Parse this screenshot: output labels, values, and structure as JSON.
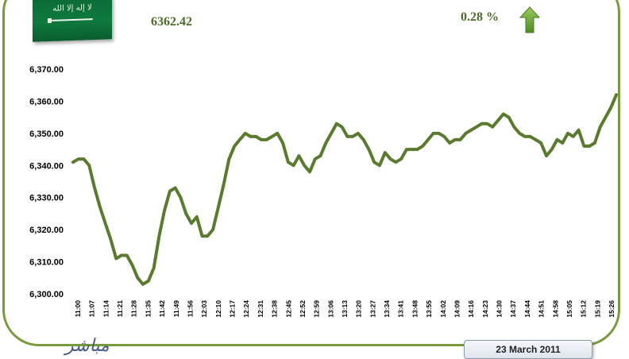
{
  "header": {
    "index_value": "6362.42",
    "change_pct": "0.28 %",
    "arrow_icon": "up-arrow-icon",
    "flag_icon": "saudi-flag-icon",
    "flag_script": "لا إله إلا الله"
  },
  "footer": {
    "logo_text": "مباشر",
    "date_label": "23 March 2011"
  },
  "colors": {
    "frame": "#7a9a3e",
    "line": "#5a7a2e",
    "value_text": "#4d6b28",
    "arrow": "#6aa43a"
  },
  "chart_data": {
    "type": "line",
    "title": "",
    "xlabel": "",
    "ylabel": "",
    "ylim": [
      6300,
      6370
    ],
    "yticks": [
      "6,300.00",
      "6,310.00",
      "6,320.00",
      "6,330.00",
      "6,340.00",
      "6,350.00",
      "6,360.00",
      "6,370.00"
    ],
    "ytick_values": [
      6300,
      6310,
      6320,
      6330,
      6340,
      6350,
      6360,
      6370
    ],
    "xticks": [
      "11:00",
      "11:07",
      "11:14",
      "11:21",
      "11:28",
      "11:35",
      "11:42",
      "11:49",
      "11:56",
      "12:03",
      "12:10",
      "12:17",
      "12:24",
      "12:31",
      "12:38",
      "12:45",
      "12:52",
      "12:59",
      "13:06",
      "13:13",
      "13:20",
      "13:27",
      "13:34",
      "13:41",
      "13:48",
      "13:55",
      "14:02",
      "14:09",
      "14:16",
      "14:23",
      "14:30",
      "14:37",
      "14:44",
      "14:51",
      "14:58",
      "15:05",
      "15:12",
      "15:19",
      "15:26"
    ],
    "grid": false,
    "legend": "none",
    "series": [
      {
        "values": [
          6341,
          6342,
          6342,
          6340,
          6333,
          6327,
          6322,
          6317,
          6311,
          6312,
          6312,
          6309,
          6305,
          6303,
          6304,
          6308,
          6318,
          6326,
          6332,
          6333,
          6330,
          6325,
          6322,
          6324,
          6318,
          6318,
          6320,
          6327,
          6334,
          6342,
          6346,
          6348,
          6350,
          6349,
          6349,
          6348,
          6348,
          6349,
          6350,
          6347,
          6341,
          6340,
          6343,
          6340,
          6338,
          6342,
          6343,
          6347,
          6350,
          6353,
          6352,
          6349,
          6349,
          6350,
          6348,
          6345,
          6341,
          6340,
          6344,
          6342,
          6341,
          6342,
          6345,
          6345,
          6345,
          6346,
          6348,
          6350,
          6350,
          6349,
          6347,
          6348,
          6348,
          6350,
          6351,
          6352,
          6353,
          6353,
          6352,
          6354,
          6356,
          6355,
          6352,
          6350,
          6349,
          6349,
          6348,
          6347,
          6343,
          6345,
          6348,
          6347,
          6350,
          6349,
          6351,
          6346,
          6346,
          6347,
          6352,
          6355,
          6358,
          6362
        ]
      }
    ]
  }
}
